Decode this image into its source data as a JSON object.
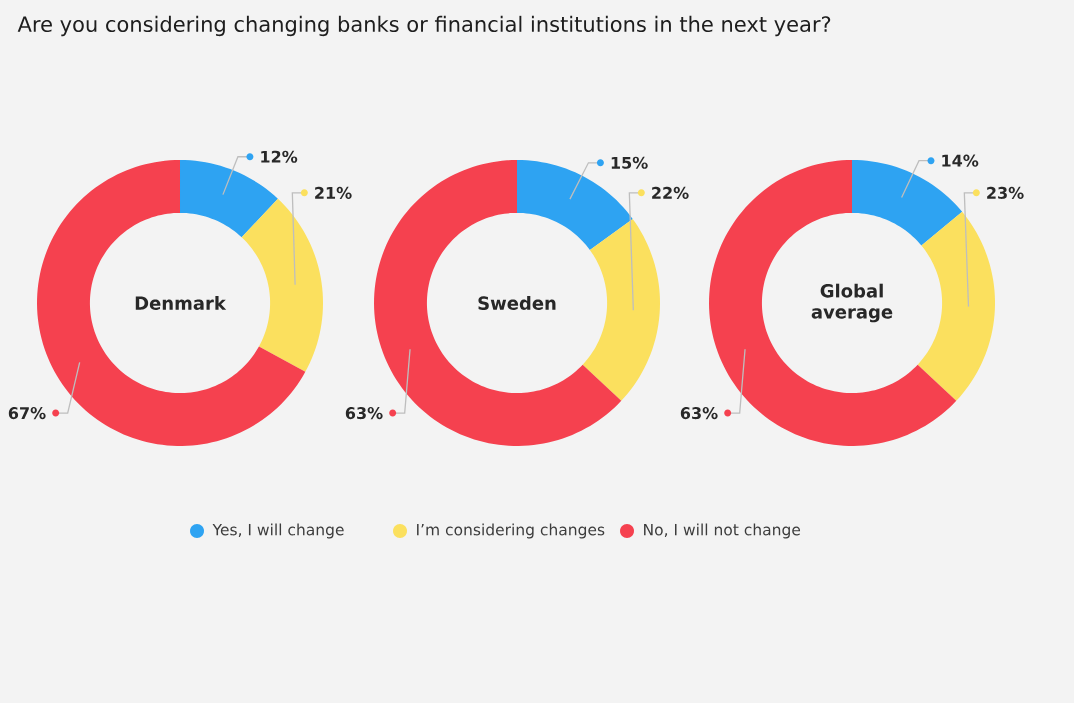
{
  "chart_data": [
    {
      "type": "donut",
      "title": "Denmark",
      "annotations": [
        "Are you considering changing banks or financial institutions in the next year?"
      ],
      "categories": [
        "Yes, I will change",
        "I’m considering changes",
        "No, I will not change"
      ],
      "values": [
        12,
        21,
        67
      ],
      "value_labels": [
        "12%",
        "21%",
        "67%"
      ],
      "colors": [
        "#2ea3f2",
        "#fbe05e",
        "#f5414f"
      ],
      "legend": "bottom"
    },
    {
      "type": "donut",
      "title": "Sweden",
      "values": [
        15,
        22,
        63
      ],
      "value_labels": [
        "15%",
        "22%",
        "63%"
      ],
      "colors": [
        "#2ea3f2",
        "#fbe05e",
        "#f5414f"
      ]
    },
    {
      "type": "donut",
      "title": "Global average",
      "values": [
        14,
        23,
        63
      ],
      "value_labels": [
        "14%",
        "23%",
        "63%"
      ],
      "colors": [
        "#2ea3f2",
        "#fbe05e",
        "#f5414f"
      ]
    }
  ]
}
